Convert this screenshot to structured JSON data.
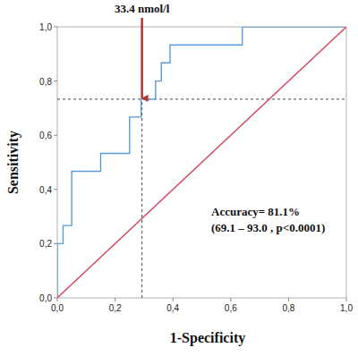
{
  "chart_data": {
    "type": "line",
    "x_label": "1-Specificity",
    "y_label": "Sensitivity",
    "xlim": [
      0,
      1
    ],
    "ylim": [
      0,
      1
    ],
    "xticks": [
      {
        "value": 0,
        "label": "0,0"
      },
      {
        "value": 0.2,
        "label": "0,2"
      },
      {
        "value": 0.4,
        "label": "0,4"
      },
      {
        "value": 0.6,
        "label": "0,6"
      },
      {
        "value": 0.8,
        "label": "0,8"
      },
      {
        "value": 1,
        "label": "1,0"
      }
    ],
    "yticks": [
      {
        "value": 0,
        "label": "0,0"
      },
      {
        "value": 0.2,
        "label": "0,2"
      },
      {
        "value": 0.4,
        "label": "0,4"
      },
      {
        "value": 0.6,
        "label": "0,6"
      },
      {
        "value": 0.8,
        "label": "0,8"
      },
      {
        "value": 1,
        "label": "1,0"
      }
    ],
    "grid": false,
    "series": [
      {
        "color": "#5b9bd5",
        "line_style": "solid",
        "x": [
          0,
          0,
          0.02,
          0.02,
          0.05,
          0.05,
          0.15,
          0.15,
          0.25,
          0.25,
          0.29,
          0.29,
          0.34,
          0.34,
          0.36,
          0.36,
          0.39,
          0.39,
          0.64,
          0.64,
          1
        ],
        "values": [
          0,
          0.2,
          0.2,
          0.267,
          0.267,
          0.467,
          0.467,
          0.533,
          0.533,
          0.667,
          0.667,
          0.733,
          0.733,
          0.8,
          0.8,
          0.867,
          0.867,
          0.933,
          0.933,
          1,
          1
        ]
      },
      {
        "color": "#d9435e",
        "line_style": "solid",
        "x": [
          0,
          1
        ],
        "values": [
          0,
          1
        ]
      }
    ],
    "cutoff": {
      "label": "33.4 nmol/l",
      "x": 0.293,
      "y": 0.733,
      "color": "#b5322f"
    },
    "accuracy_text": "Accuracy= 81.1%",
    "accuracy_ci": "(69.1 – 93.0 , p<0.0001)"
  }
}
